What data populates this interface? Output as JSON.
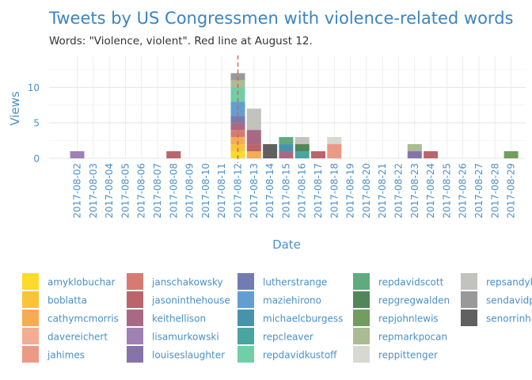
{
  "chart_data": {
    "type": "bar",
    "stacked": true,
    "title": "Tweets by US Congressmen with violence-related words",
    "subtitle": "Words: \"Violence, violent\". Red line at August 12.",
    "xlabel": "Date",
    "ylabel": "Views",
    "ylim": [
      0,
      14.5
    ],
    "yticks": [
      0,
      5,
      10
    ],
    "grid": true,
    "legend_position": "bottom",
    "reference_line": {
      "x": "2017-08-12",
      "color": "#e05a4a",
      "style": "dashed"
    },
    "categories": [
      "2017-08-02",
      "2017-08-03",
      "2017-08-04",
      "2017-08-05",
      "2017-08-06",
      "2017-08-07",
      "2017-08-08",
      "2017-08-09",
      "2017-08-10",
      "2017-08-11",
      "2017-08-12",
      "2017-08-13",
      "2017-08-14",
      "2017-08-15",
      "2017-08-16",
      "2017-08-17",
      "2017-08-18",
      "2017-08-19",
      "2017-08-20",
      "2017-08-21",
      "2017-08-22",
      "2017-08-23",
      "2017-08-24",
      "2017-08-25",
      "2017-08-26",
      "2017-08-27",
      "2017-08-28",
      "2017-08-29"
    ],
    "series": [
      {
        "name": "amyklobuchar",
        "color": "#fcd60c",
        "values": [
          0,
          0,
          0,
          0,
          0,
          0,
          0,
          0,
          0,
          0,
          1,
          0,
          0,
          0,
          0,
          0,
          0,
          0,
          0,
          0,
          0,
          0,
          0,
          0,
          0,
          0,
          0,
          0
        ]
      },
      {
        "name": "boblatta",
        "color": "#f9bc1d",
        "values": [
          0,
          0,
          0,
          0,
          0,
          0,
          0,
          0,
          0,
          0,
          1,
          0,
          0,
          0,
          0,
          0,
          0,
          0,
          0,
          0,
          0,
          0,
          0,
          0,
          0,
          0,
          0,
          0
        ]
      },
      {
        "name": "cathymcmorris",
        "color": "#f5a03a",
        "values": [
          0,
          0,
          0,
          0,
          0,
          0,
          0,
          0,
          0,
          0,
          1,
          1,
          0,
          0,
          0,
          0,
          0,
          0,
          0,
          0,
          0,
          0,
          0,
          0,
          0,
          0,
          0,
          0
        ]
      },
      {
        "name": "davereichert",
        "color": "#f2a283",
        "values": [
          0,
          0,
          0,
          0,
          0,
          0,
          0,
          0,
          0,
          0,
          0,
          0,
          0,
          0,
          0,
          0,
          0,
          0,
          0,
          0,
          0,
          0,
          0,
          0,
          0,
          0,
          0,
          0
        ]
      },
      {
        "name": "jahimes",
        "color": "#e98b75",
        "values": [
          0,
          0,
          0,
          0,
          0,
          0,
          0,
          0,
          0,
          0,
          0,
          0,
          0,
          0,
          0,
          0,
          2,
          0,
          0,
          0,
          0,
          0,
          0,
          0,
          0,
          0,
          0,
          0
        ]
      },
      {
        "name": "janschakowsky",
        "color": "#d2695f",
        "values": [
          0,
          0,
          0,
          0,
          0,
          0,
          0,
          0,
          0,
          0,
          1,
          0,
          0,
          0,
          0,
          0,
          0,
          0,
          0,
          0,
          0,
          0,
          0,
          0,
          0,
          0,
          0,
          0
        ]
      },
      {
        "name": "jasoninthehouse",
        "color": "#b24f55",
        "values": [
          0,
          0,
          0,
          0,
          0,
          0,
          1,
          0,
          0,
          0,
          0,
          1,
          0,
          0,
          0,
          1,
          0,
          0,
          0,
          0,
          0,
          0,
          1,
          0,
          0,
          0,
          0,
          0
        ]
      },
      {
        "name": "keithellison",
        "color": "#9d5474",
        "values": [
          0,
          0,
          0,
          0,
          0,
          0,
          0,
          0,
          0,
          0,
          1,
          2,
          0,
          1,
          0,
          0,
          0,
          0,
          0,
          0,
          0,
          0,
          0,
          0,
          0,
          0,
          0,
          0
        ]
      },
      {
        "name": "lisamurkowski",
        "color": "#936fa8",
        "values": [
          1,
          0,
          0,
          0,
          0,
          0,
          0,
          0,
          0,
          0,
          0,
          0,
          0,
          0,
          0,
          0,
          0,
          0,
          0,
          0,
          0,
          0,
          0,
          0,
          0,
          0,
          0,
          0
        ]
      },
      {
        "name": "louiseslaughter",
        "color": "#76609f",
        "values": [
          0,
          0,
          0,
          0,
          0,
          0,
          0,
          0,
          0,
          0,
          0,
          0,
          0,
          0,
          0,
          0,
          0,
          0,
          0,
          0,
          0,
          1,
          0,
          0,
          0,
          0,
          0,
          0
        ]
      },
      {
        "name": "lutherstrange",
        "color": "#5e6aa6",
        "values": [
          0,
          0,
          0,
          0,
          0,
          0,
          0,
          0,
          0,
          0,
          1,
          0,
          0,
          0,
          0,
          0,
          0,
          0,
          0,
          0,
          0,
          0,
          0,
          0,
          0,
          0,
          0,
          0
        ]
      },
      {
        "name": "maziehirono",
        "color": "#4c92c8",
        "values": [
          0,
          0,
          0,
          0,
          0,
          0,
          0,
          0,
          0,
          0,
          2,
          0,
          0,
          0,
          0,
          0,
          0,
          0,
          0,
          0,
          0,
          0,
          0,
          0,
          0,
          0,
          0,
          0
        ]
      },
      {
        "name": "michaelcburgess",
        "color": "#2f84a0",
        "values": [
          0,
          0,
          0,
          0,
          0,
          0,
          0,
          0,
          0,
          0,
          0,
          0,
          0,
          1,
          0,
          0,
          0,
          0,
          0,
          0,
          0,
          0,
          0,
          0,
          0,
          0,
          0,
          0
        ]
      },
      {
        "name": "repcleaver",
        "color": "#309892",
        "values": [
          0,
          0,
          0,
          0,
          0,
          0,
          0,
          0,
          0,
          0,
          0,
          0,
          0,
          0,
          1,
          0,
          0,
          0,
          0,
          0,
          0,
          0,
          0,
          0,
          0,
          0,
          0,
          0
        ]
      },
      {
        "name": "repdavidkustoff",
        "color": "#5dc79b",
        "values": [
          0,
          0,
          0,
          0,
          0,
          0,
          0,
          0,
          0,
          0,
          2,
          0,
          0,
          0,
          0,
          0,
          0,
          0,
          0,
          0,
          0,
          0,
          0,
          0,
          0,
          0,
          0,
          0
        ]
      },
      {
        "name": "repdavidscott",
        "color": "#4b9e6b",
        "values": [
          0,
          0,
          0,
          0,
          0,
          0,
          0,
          0,
          0,
          0,
          0,
          0,
          0,
          1,
          0,
          0,
          0,
          0,
          0,
          0,
          0,
          0,
          0,
          0,
          0,
          0,
          0,
          0
        ]
      },
      {
        "name": "repgregwalden",
        "color": "#3a7441",
        "values": [
          0,
          0,
          0,
          0,
          0,
          0,
          0,
          0,
          0,
          0,
          0,
          0,
          0,
          0,
          1,
          0,
          0,
          0,
          0,
          0,
          0,
          0,
          0,
          0,
          0,
          0,
          0,
          0
        ]
      },
      {
        "name": "repjohnlewis",
        "color": "#5f8f48",
        "values": [
          0,
          0,
          0,
          0,
          0,
          0,
          0,
          0,
          0,
          0,
          0,
          0,
          0,
          0,
          0,
          0,
          0,
          0,
          0,
          0,
          0,
          0,
          0,
          0,
          0,
          0,
          0,
          1
        ]
      },
      {
        "name": "repmarkpocan",
        "color": "#9fb283",
        "values": [
          0,
          0,
          0,
          0,
          0,
          0,
          0,
          0,
          0,
          0,
          1,
          0,
          0,
          0,
          0,
          0,
          0,
          0,
          0,
          0,
          0,
          1,
          0,
          0,
          0,
          0,
          0,
          0
        ]
      },
      {
        "name": "reppittenger",
        "color": "#d2d3c9",
        "values": [
          0,
          0,
          0,
          0,
          0,
          0,
          0,
          0,
          0,
          0,
          0,
          0,
          0,
          0,
          0,
          0,
          1,
          0,
          0,
          0,
          0,
          0,
          0,
          0,
          0,
          0,
          0,
          0
        ]
      },
      {
        "name": "repsandylevin",
        "color": "#b9b9b6",
        "values": [
          0,
          0,
          0,
          0,
          0,
          0,
          0,
          0,
          0,
          0,
          0,
          3,
          0,
          0,
          1,
          0,
          0,
          0,
          0,
          0,
          0,
          0,
          0,
          0,
          0,
          0,
          0,
          0
        ]
      },
      {
        "name": "sendavidperdue",
        "color": "#8b8b8b",
        "values": [
          0,
          0,
          0,
          0,
          0,
          0,
          0,
          0,
          0,
          0,
          1,
          0,
          0,
          0,
          0,
          0,
          0,
          0,
          0,
          0,
          0,
          0,
          0,
          0,
          0,
          0,
          0,
          0
        ]
      },
      {
        "name": "senorrinhatch",
        "color": "#4a4a4a",
        "values": [
          0,
          0,
          0,
          0,
          0,
          0,
          0,
          0,
          0,
          0,
          0,
          0,
          2,
          0,
          0,
          0,
          0,
          0,
          0,
          0,
          0,
          0,
          0,
          0,
          0,
          0,
          0,
          0
        ]
      }
    ],
    "legend_labels": [
      "amyklobuchar",
      "boblatta",
      "cathymcmorris",
      "davereichert",
      "jahimes",
      "janschakowsky",
      "jasoninthehouse",
      "keithellison",
      "lisamurkowski",
      "louiseslaughter",
      "lutherstrange",
      "maziehirono",
      "michaelcburgess",
      "repcleaver",
      "repdavidkustoff",
      "repdavidscott",
      "repgregwalden",
      "repjohnlewis",
      "repmarkpocan",
      "reppittenger",
      "repsandyle",
      "sendavidp",
      "senorrinha"
    ]
  }
}
